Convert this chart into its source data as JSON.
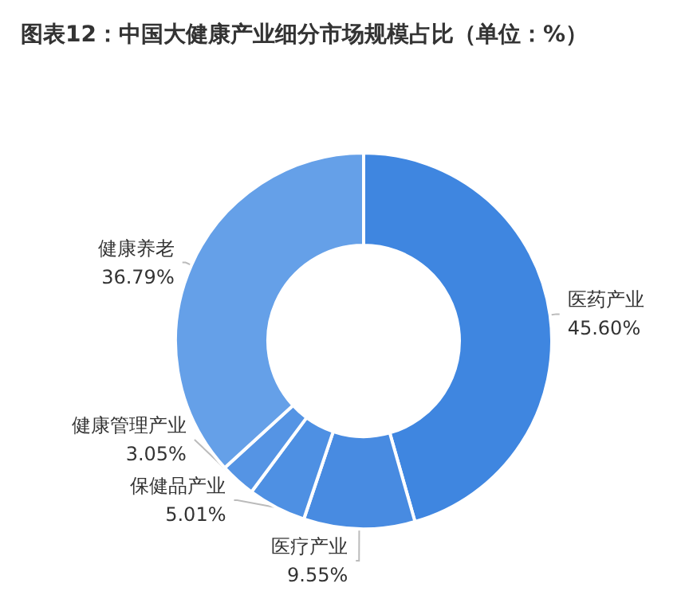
{
  "chart_data": {
    "type": "donut",
    "title": "图表12：中国大健康产业细分市场规模占比（单位：%）",
    "categories": [
      "医药产业",
      "医疗产业",
      "保健品产业",
      "健康管理产业",
      "健康养老"
    ],
    "values": [
      45.6,
      9.55,
      5.01,
      3.05,
      36.79
    ],
    "value_labels": [
      "45.60%",
      "9.55%",
      "5.01%",
      "3.05%",
      "36.79%"
    ],
    "colors": [
      "#3f86e0",
      "#488be1",
      "#4e90e3",
      "#5594e4",
      "#65a0e8"
    ],
    "legend": false
  }
}
